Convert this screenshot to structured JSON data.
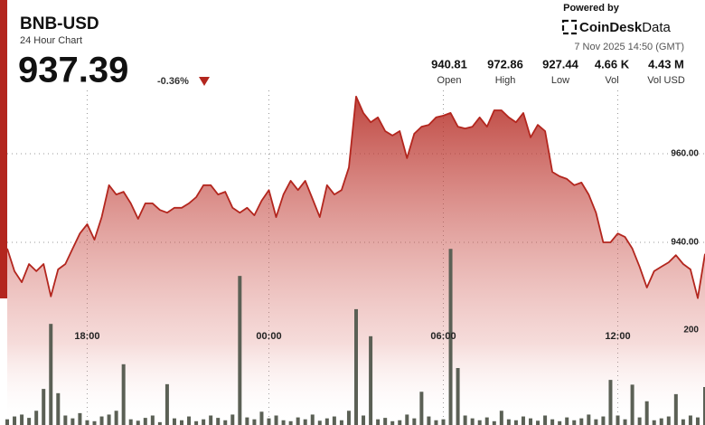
{
  "chart_data": {
    "type": "line",
    "title": "BNB-USD",
    "subtitle": "24 Hour Chart",
    "last_price": 937.39,
    "change": "-0.36%",
    "powered_by": "Powered by",
    "brand": {
      "bold": "CoinDesk",
      "light": "Data"
    },
    "timestamp": "7 Nov 2025 14:50 (GMT)",
    "stats": [
      {
        "value": "940.81",
        "label": "Open"
      },
      {
        "value": "972.86",
        "label": "High"
      },
      {
        "value": "927.44",
        "label": "Low"
      },
      {
        "value": "4.66 K",
        "label": "Vol"
      },
      {
        "value": "4.43 M",
        "label": "Vol USD"
      }
    ],
    "categories": [
      null,
      null,
      null,
      null,
      null,
      null,
      null,
      null,
      null,
      null,
      null,
      "18:00",
      null,
      null,
      null,
      null,
      null,
      null,
      null,
      null,
      null,
      null,
      null,
      null,
      null,
      null,
      null,
      null,
      null,
      null,
      null,
      null,
      null,
      null,
      null,
      null,
      "00:00",
      null,
      null,
      null,
      null,
      null,
      null,
      null,
      null,
      null,
      null,
      null,
      null,
      null,
      null,
      null,
      null,
      null,
      null,
      null,
      null,
      null,
      null,
      null,
      "06:00",
      null,
      null,
      null,
      null,
      null,
      null,
      null,
      null,
      null,
      null,
      null,
      null,
      null,
      null,
      null,
      null,
      null,
      null,
      null,
      null,
      null,
      null,
      null,
      "12:00",
      null,
      null,
      null,
      null,
      null,
      null,
      null,
      null,
      null,
      null,
      null,
      null
    ],
    "values": [
      938.6,
      933.5,
      931.0,
      935.1,
      933.5,
      935.1,
      927.8,
      933.9,
      935.1,
      938.6,
      942.0,
      944.1,
      940.6,
      945.7,
      952.9,
      950.8,
      951.4,
      948.8,
      945.3,
      948.8,
      948.8,
      947.3,
      946.7,
      947.8,
      947.8,
      948.8,
      950.2,
      952.9,
      952.9,
      950.8,
      951.4,
      947.8,
      946.7,
      947.8,
      946.1,
      949.4,
      951.8,
      945.7,
      950.8,
      953.9,
      951.8,
      953.9,
      949.8,
      945.7,
      952.9,
      950.8,
      951.8,
      956.9,
      972.9,
      969.2,
      967.1,
      968.2,
      965.1,
      964.1,
      965.1,
      959.0,
      964.5,
      966.1,
      966.5,
      968.2,
      968.6,
      969.2,
      966.1,
      965.7,
      966.1,
      968.2,
      966.1,
      969.8,
      969.8,
      968.2,
      967.1,
      969.2,
      963.7,
      966.5,
      965.1,
      955.9,
      954.9,
      954.3,
      952.9,
      953.5,
      950.8,
      946.7,
      940.0,
      940.0,
      942.0,
      941.2,
      938.6,
      934.5,
      929.8,
      933.5,
      934.5,
      935.5,
      937.1,
      935.1,
      933.9,
      927.4,
      937.4
    ],
    "color": "#b3261e",
    "volume": {
      "axis": "y2",
      "color": "#5b6055",
      "values": [
        12,
        18,
        22,
        15,
        30,
        76,
        213,
        67,
        20,
        14,
        25,
        10,
        8,
        18,
        22,
        30,
        128,
        12,
        9,
        15,
        20,
        6,
        86,
        14,
        10,
        18,
        8,
        12,
        20,
        15,
        10,
        22,
        314,
        16,
        12,
        28,
        14,
        20,
        10,
        8,
        16,
        12,
        22,
        9,
        14,
        18,
        10,
        30,
        244,
        20,
        187,
        12,
        15,
        8,
        10,
        22,
        14,
        70,
        18,
        10,
        12,
        371,
        120,
        20,
        14,
        10,
        16,
        8,
        30,
        12,
        10,
        18,
        14,
        9,
        20,
        12,
        8,
        16,
        10,
        14,
        22,
        12,
        18,
        95,
        20,
        12,
        85,
        16,
        50,
        10,
        14,
        18,
        65,
        12,
        20,
        16,
        80
      ]
    },
    "ylim": [
      900,
      980
    ],
    "yticks": [
      {
        "value": 940,
        "label": "940.00"
      },
      {
        "value": 960,
        "label": "960.00"
      }
    ],
    "y2lim": [
      0,
      400
    ],
    "y2ticks": [
      200
    ],
    "grid": true
  }
}
